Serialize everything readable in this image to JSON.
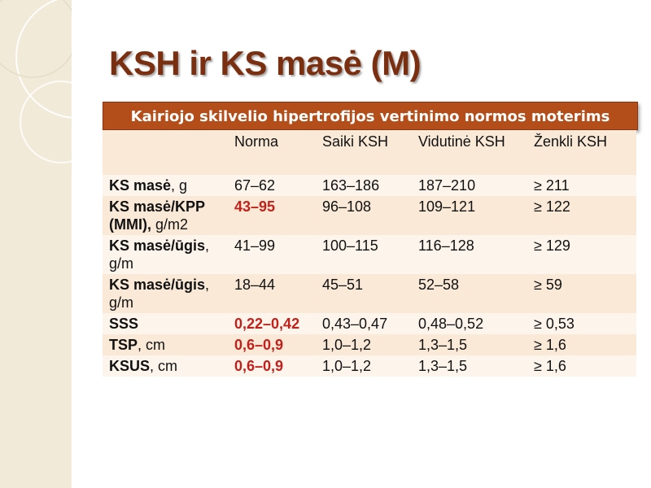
{
  "slide": {
    "title": "KSH ir KS masė (M)",
    "banner": "Kairiojo skilvelio hipertrofijos vertinimo normos moterims"
  },
  "table": {
    "headers": [
      "",
      "Norma",
      "Saiki KSH",
      "Vidutinė KSH",
      "Ženkli KSH"
    ],
    "rows": [
      {
        "name": "KS masė",
        "unit": ", g",
        "norma": "67–62",
        "saiki": "163–186",
        "vidutine": "187–210",
        "zenkli": "≥ 211"
      },
      {
        "name": "KS masė/KPP (MMI),",
        "unit": " g/m2",
        "norma": "43–95",
        "saiki": "96–108",
        "vidutine": "109–121",
        "zenkli": "≥ 122"
      },
      {
        "name": "KS masė/ūgis",
        "unit": ", g/m",
        "norma": "41–99",
        "saiki": "100–115",
        "vidutine": "116–128",
        "zenkli": "≥ 129"
      },
      {
        "name": "KS masė/ūgis",
        "unit": ", g/m",
        "norma": "18–44",
        "saiki": "45–51",
        "vidutine": "52–58",
        "zenkli": "≥ 59"
      },
      {
        "name": "SSS",
        "unit": "",
        "norma": "0,22–0,42",
        "saiki": "0,43–0,47",
        "vidutine": "0,48–0,52",
        "zenkli": "≥ 0,53"
      },
      {
        "name": "TSP",
        "unit": ", cm",
        "norma": "0,6–0,9",
        "saiki": "1,0–1,2",
        "vidutine": "1,3–1,5",
        "zenkli": "≥ 1,6"
      },
      {
        "name": "KSUS",
        "unit": ", cm",
        "norma": "0,6–0,9",
        "saiki": "1,0–1,2",
        "vidutine": "1,3–1,5",
        "zenkli": "≥ 1,6"
      }
    ]
  },
  "colors": {
    "title": "#7a2f10",
    "banner_bg": "#b34d19",
    "highlight_red": "#c0211a",
    "row_shade": "#fbe9d8",
    "side_band": "#f1ead9"
  }
}
